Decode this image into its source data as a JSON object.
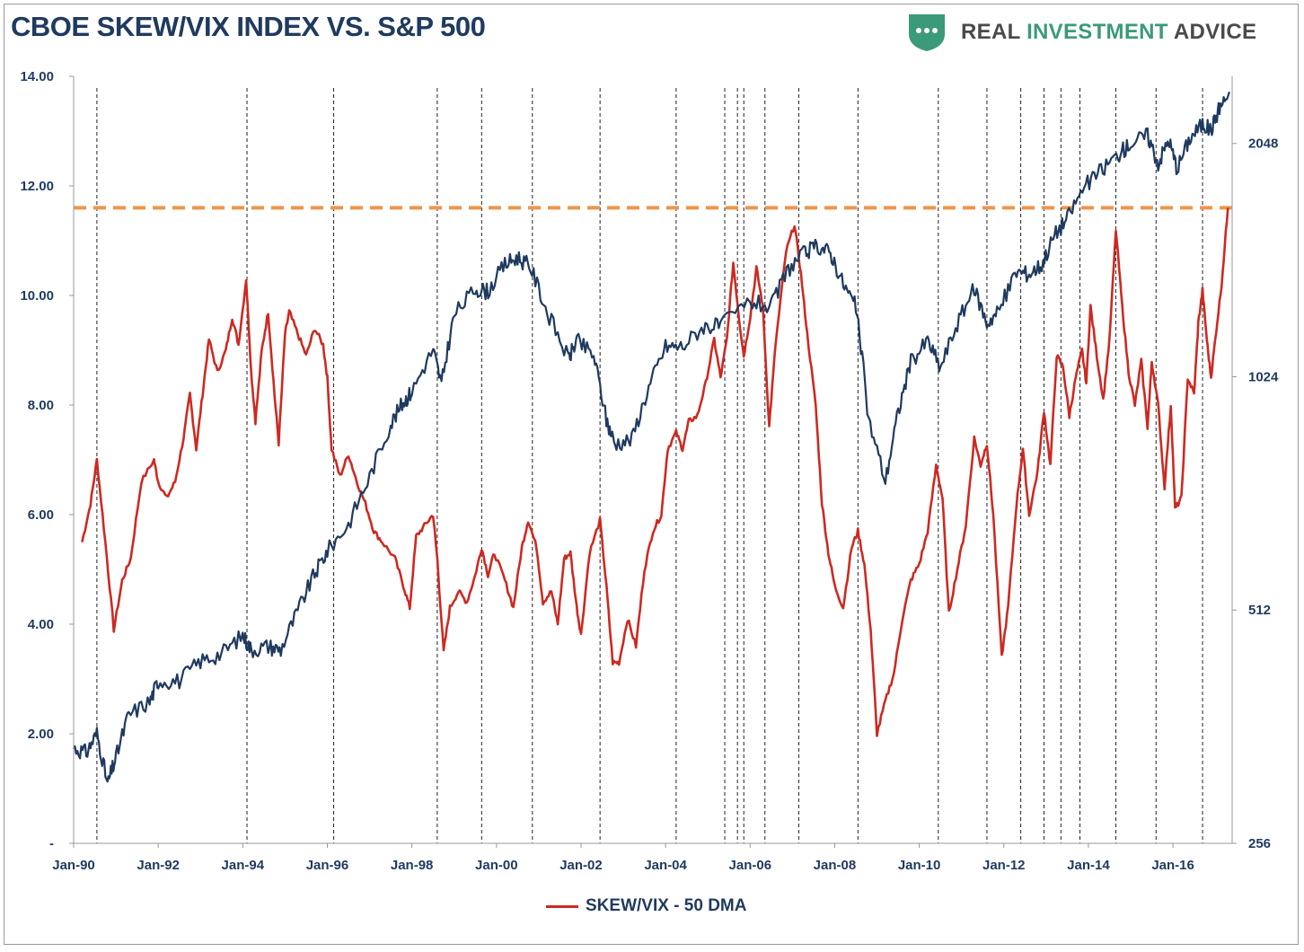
{
  "header": {
    "title": "CBOE SKEW/VIX INDEX VS. S&P 500",
    "brand_part1": "REAL ",
    "brand_part2": "INVESTMENT",
    "brand_part3": " ADVICE"
  },
  "colors": {
    "title": "#1f3a5f",
    "skew_vix": "#cc2a22",
    "sp500": "#1f3a5f",
    "threshold": "#f0954a",
    "brand_shield": "#3a9a7a",
    "axis_text": "#1f3a5f"
  },
  "chart_data": {
    "type": "line",
    "title": "CBOE SKEW/VIX INDEX VS. S&P 500",
    "x_range": [
      1990.0,
      2017.4
    ],
    "x_ticks": [
      {
        "x": 1990,
        "label": "Jan-90"
      },
      {
        "x": 1992,
        "label": "Jan-92"
      },
      {
        "x": 1994,
        "label": "Jan-94"
      },
      {
        "x": 1996,
        "label": "Jan-96"
      },
      {
        "x": 1998,
        "label": "Jan-98"
      },
      {
        "x": 2000,
        "label": "Jan-00"
      },
      {
        "x": 2002,
        "label": "Jan-02"
      },
      {
        "x": 2004,
        "label": "Jan-04"
      },
      {
        "x": 2006,
        "label": "Jan-06"
      },
      {
        "x": 2008,
        "label": "Jan-08"
      },
      {
        "x": 2010,
        "label": "Jan-10"
      },
      {
        "x": 2012,
        "label": "Jan-12"
      },
      {
        "x": 2014,
        "label": "Jan-14"
      },
      {
        "x": 2016,
        "label": "Jan-16"
      }
    ],
    "left_axis": {
      "range": [
        0,
        14
      ],
      "ticks": [
        {
          "v": 0,
          "label": "-"
        },
        {
          "v": 2,
          "label": "2.00"
        },
        {
          "v": 4,
          "label": "4.00"
        },
        {
          "v": 6,
          "label": "6.00"
        },
        {
          "v": 8,
          "label": "8.00"
        },
        {
          "v": 10,
          "label": "10.00"
        },
        {
          "v": 12,
          "label": "12.00"
        },
        {
          "v": 14,
          "label": "14.00"
        }
      ]
    },
    "right_axis": {
      "scale": "log2",
      "range": [
        256,
        2500
      ],
      "ticks": [
        {
          "v": 256,
          "label": "256"
        },
        {
          "v": 512,
          "label": "512"
        },
        {
          "v": 1024,
          "label": "1024"
        },
        {
          "v": 2048,
          "label": "2048"
        }
      ]
    },
    "threshold_line": {
      "value": 11.6,
      "axis": "left"
    },
    "event_lines_x": [
      1990.55,
      1994.1,
      1996.15,
      1998.6,
      1999.65,
      2000.85,
      2002.45,
      2004.25,
      2005.4,
      2005.7,
      2005.85,
      2006.35,
      2007.15,
      2008.55,
      2010.45,
      2011.6,
      2012.4,
      2012.95,
      2013.35,
      2013.8,
      2014.65,
      2015.6,
      2016.7
    ],
    "series": [
      {
        "name": "SKEW/VIX - 50 DMA",
        "axis": "left",
        "in_legend": true,
        "points": [
          [
            1990.2,
            5.5
          ],
          [
            1990.4,
            6.2
          ],
          [
            1990.55,
            7.0
          ],
          [
            1990.75,
            5.5
          ],
          [
            1990.95,
            3.9
          ],
          [
            1991.15,
            4.8
          ],
          [
            1991.35,
            5.2
          ],
          [
            1991.6,
            6.6
          ],
          [
            1991.9,
            7.0
          ],
          [
            1992.0,
            6.6
          ],
          [
            1992.2,
            6.3
          ],
          [
            1992.4,
            6.6
          ],
          [
            1992.6,
            7.4
          ],
          [
            1992.75,
            8.2
          ],
          [
            1992.9,
            7.2
          ],
          [
            1993.05,
            8.2
          ],
          [
            1993.2,
            9.2
          ],
          [
            1993.4,
            8.6
          ],
          [
            1993.6,
            9.0
          ],
          [
            1993.75,
            9.6
          ],
          [
            1993.9,
            9.1
          ],
          [
            1994.08,
            10.3
          ],
          [
            1994.2,
            8.6
          ],
          [
            1994.3,
            7.7
          ],
          [
            1994.45,
            9.0
          ],
          [
            1994.6,
            9.7
          ],
          [
            1994.75,
            8.2
          ],
          [
            1994.85,
            7.3
          ],
          [
            1995.0,
            9.3
          ],
          [
            1995.1,
            9.7
          ],
          [
            1995.3,
            9.3
          ],
          [
            1995.5,
            8.9
          ],
          [
            1995.7,
            9.4
          ],
          [
            1995.9,
            9.1
          ],
          [
            1996.0,
            8.5
          ],
          [
            1996.1,
            7.2
          ],
          [
            1996.3,
            6.7
          ],
          [
            1996.5,
            7.1
          ],
          [
            1996.7,
            6.6
          ],
          [
            1996.9,
            6.2
          ],
          [
            1997.1,
            5.7
          ],
          [
            1997.3,
            5.5
          ],
          [
            1997.6,
            5.2
          ],
          [
            1997.8,
            4.7
          ],
          [
            1997.95,
            4.3
          ],
          [
            1998.1,
            5.6
          ],
          [
            1998.3,
            5.8
          ],
          [
            1998.5,
            6.0
          ],
          [
            1998.6,
            5.2
          ],
          [
            1998.75,
            3.5
          ],
          [
            1998.9,
            4.3
          ],
          [
            1999.1,
            4.6
          ],
          [
            1999.3,
            4.4
          ],
          [
            1999.5,
            4.9
          ],
          [
            1999.65,
            5.4
          ],
          [
            1999.8,
            4.9
          ],
          [
            1999.95,
            5.3
          ],
          [
            2000.2,
            4.8
          ],
          [
            2000.4,
            4.3
          ],
          [
            2000.6,
            5.4
          ],
          [
            2000.75,
            5.9
          ],
          [
            2000.95,
            5.4
          ],
          [
            2001.1,
            4.4
          ],
          [
            2001.3,
            4.6
          ],
          [
            2001.45,
            4.0
          ],
          [
            2001.6,
            5.2
          ],
          [
            2001.75,
            5.3
          ],
          [
            2001.9,
            4.3
          ],
          [
            2002.0,
            3.8
          ],
          [
            2002.2,
            5.3
          ],
          [
            2002.45,
            5.9
          ],
          [
            2002.6,
            4.7
          ],
          [
            2002.75,
            3.3
          ],
          [
            2002.9,
            3.3
          ],
          [
            2003.1,
            4.1
          ],
          [
            2003.3,
            3.6
          ],
          [
            2003.5,
            5.0
          ],
          [
            2003.7,
            5.7
          ],
          [
            2003.9,
            6.0
          ],
          [
            2004.05,
            7.2
          ],
          [
            2004.25,
            7.5
          ],
          [
            2004.4,
            7.2
          ],
          [
            2004.55,
            7.7
          ],
          [
            2004.75,
            7.8
          ],
          [
            2004.95,
            8.4
          ],
          [
            2005.15,
            9.2
          ],
          [
            2005.3,
            8.5
          ],
          [
            2005.45,
            9.2
          ],
          [
            2005.6,
            10.6
          ],
          [
            2005.75,
            9.5
          ],
          [
            2005.85,
            8.9
          ],
          [
            2006.0,
            9.6
          ],
          [
            2006.15,
            10.5
          ],
          [
            2006.3,
            9.8
          ],
          [
            2006.45,
            7.6
          ],
          [
            2006.6,
            9.1
          ],
          [
            2006.85,
            10.8
          ],
          [
            2007.05,
            11.3
          ],
          [
            2007.2,
            10.4
          ],
          [
            2007.35,
            9.3
          ],
          [
            2007.55,
            8.0
          ],
          [
            2007.7,
            6.2
          ],
          [
            2007.85,
            5.3
          ],
          [
            2008.0,
            4.7
          ],
          [
            2008.2,
            4.3
          ],
          [
            2008.4,
            5.4
          ],
          [
            2008.55,
            5.7
          ],
          [
            2008.7,
            5.1
          ],
          [
            2008.85,
            3.9
          ],
          [
            2009.0,
            2.0
          ],
          [
            2009.2,
            2.6
          ],
          [
            2009.4,
            3.1
          ],
          [
            2009.6,
            4.1
          ],
          [
            2009.8,
            4.8
          ],
          [
            2010.0,
            5.1
          ],
          [
            2010.2,
            5.7
          ],
          [
            2010.4,
            6.9
          ],
          [
            2010.55,
            6.3
          ],
          [
            2010.7,
            4.2
          ],
          [
            2010.9,
            5.0
          ],
          [
            2011.1,
            5.8
          ],
          [
            2011.3,
            7.4
          ],
          [
            2011.45,
            6.9
          ],
          [
            2011.6,
            7.3
          ],
          [
            2011.75,
            6.0
          ],
          [
            2011.95,
            3.4
          ],
          [
            2012.1,
            4.3
          ],
          [
            2012.3,
            6.2
          ],
          [
            2012.45,
            7.2
          ],
          [
            2012.6,
            6.0
          ],
          [
            2012.8,
            6.8
          ],
          [
            2012.95,
            7.9
          ],
          [
            2013.1,
            6.9
          ],
          [
            2013.25,
            8.9
          ],
          [
            2013.4,
            8.7
          ],
          [
            2013.55,
            7.8
          ],
          [
            2013.7,
            8.5
          ],
          [
            2013.85,
            9.0
          ],
          [
            2013.95,
            8.4
          ],
          [
            2014.05,
            9.8
          ],
          [
            2014.2,
            8.9
          ],
          [
            2014.35,
            8.1
          ],
          [
            2014.5,
            9.2
          ],
          [
            2014.65,
            11.2
          ],
          [
            2014.8,
            9.8
          ],
          [
            2014.95,
            8.6
          ],
          [
            2015.1,
            8.0
          ],
          [
            2015.25,
            8.8
          ],
          [
            2015.4,
            7.6
          ],
          [
            2015.5,
            8.8
          ],
          [
            2015.65,
            8.0
          ],
          [
            2015.8,
            6.5
          ],
          [
            2015.95,
            8.0
          ],
          [
            2016.05,
            6.1
          ],
          [
            2016.2,
            6.3
          ],
          [
            2016.35,
            8.5
          ],
          [
            2016.5,
            8.2
          ],
          [
            2016.6,
            9.5
          ],
          [
            2016.7,
            10.1
          ],
          [
            2016.8,
            9.2
          ],
          [
            2016.9,
            8.5
          ],
          [
            2017.0,
            9.2
          ],
          [
            2017.15,
            10.2
          ],
          [
            2017.3,
            11.6
          ]
        ]
      },
      {
        "name": "S&P 500",
        "axis": "right",
        "in_legend": false,
        "points": [
          [
            1990.0,
            340
          ],
          [
            1990.3,
            335
          ],
          [
            1990.55,
            355
          ],
          [
            1990.8,
            305
          ],
          [
            1991.0,
            330
          ],
          [
            1991.3,
            375
          ],
          [
            1991.8,
            390
          ],
          [
            1992.0,
            415
          ],
          [
            1992.5,
            415
          ],
          [
            1993.0,
            440
          ],
          [
            1993.5,
            450
          ],
          [
            1994.0,
            475
          ],
          [
            1994.2,
            455
          ],
          [
            1994.6,
            460
          ],
          [
            1994.9,
            455
          ],
          [
            1995.3,
            510
          ],
          [
            1995.7,
            570
          ],
          [
            1996.0,
            610
          ],
          [
            1996.5,
            660
          ],
          [
            1997.0,
            760
          ],
          [
            1997.5,
            890
          ],
          [
            1997.8,
            950
          ],
          [
            1998.0,
            980
          ],
          [
            1998.5,
            1110
          ],
          [
            1998.7,
            1000
          ],
          [
            1999.0,
            1230
          ],
          [
            1999.5,
            1330
          ],
          [
            1999.8,
            1320
          ],
          [
            2000.2,
            1430
          ],
          [
            2000.5,
            1460
          ],
          [
            2000.8,
            1420
          ],
          [
            2001.2,
            1240
          ],
          [
            2001.7,
            1080
          ],
          [
            2001.9,
            1140
          ],
          [
            2002.3,
            1090
          ],
          [
            2002.6,
            900
          ],
          [
            2002.8,
            840
          ],
          [
            2003.2,
            850
          ],
          [
            2003.6,
            990
          ],
          [
            2004.0,
            1120
          ],
          [
            2004.4,
            1120
          ],
          [
            2004.9,
            1190
          ],
          [
            2005.3,
            1190
          ],
          [
            2006.0,
            1280
          ],
          [
            2006.5,
            1260
          ],
          [
            2006.9,
            1410
          ],
          [
            2007.3,
            1480
          ],
          [
            2007.6,
            1510
          ],
          [
            2007.9,
            1480
          ],
          [
            2008.2,
            1350
          ],
          [
            2008.5,
            1260
          ],
          [
            2008.8,
            900
          ],
          [
            2009.2,
            750
          ],
          [
            2009.5,
            920
          ],
          [
            2009.8,
            1070
          ],
          [
            2010.2,
            1140
          ],
          [
            2010.5,
            1050
          ],
          [
            2010.9,
            1200
          ],
          [
            2011.3,
            1330
          ],
          [
            2011.6,
            1200
          ],
          [
            2011.9,
            1250
          ],
          [
            2012.3,
            1400
          ],
          [
            2012.6,
            1390
          ],
          [
            2012.9,
            1430
          ],
          [
            2013.2,
            1560
          ],
          [
            2013.5,
            1640
          ],
          [
            2013.9,
            1800
          ],
          [
            2014.3,
            1890
          ],
          [
            2014.7,
            1980
          ],
          [
            2015.0,
            2050
          ],
          [
            2015.4,
            2100
          ],
          [
            2015.65,
            1930
          ],
          [
            2015.9,
            2070
          ],
          [
            2016.1,
            1900
          ],
          [
            2016.4,
            2080
          ],
          [
            2016.7,
            2170
          ],
          [
            2016.9,
            2130
          ],
          [
            2017.1,
            2280
          ],
          [
            2017.35,
            2380
          ]
        ]
      }
    ],
    "legend": "bottom-center"
  }
}
